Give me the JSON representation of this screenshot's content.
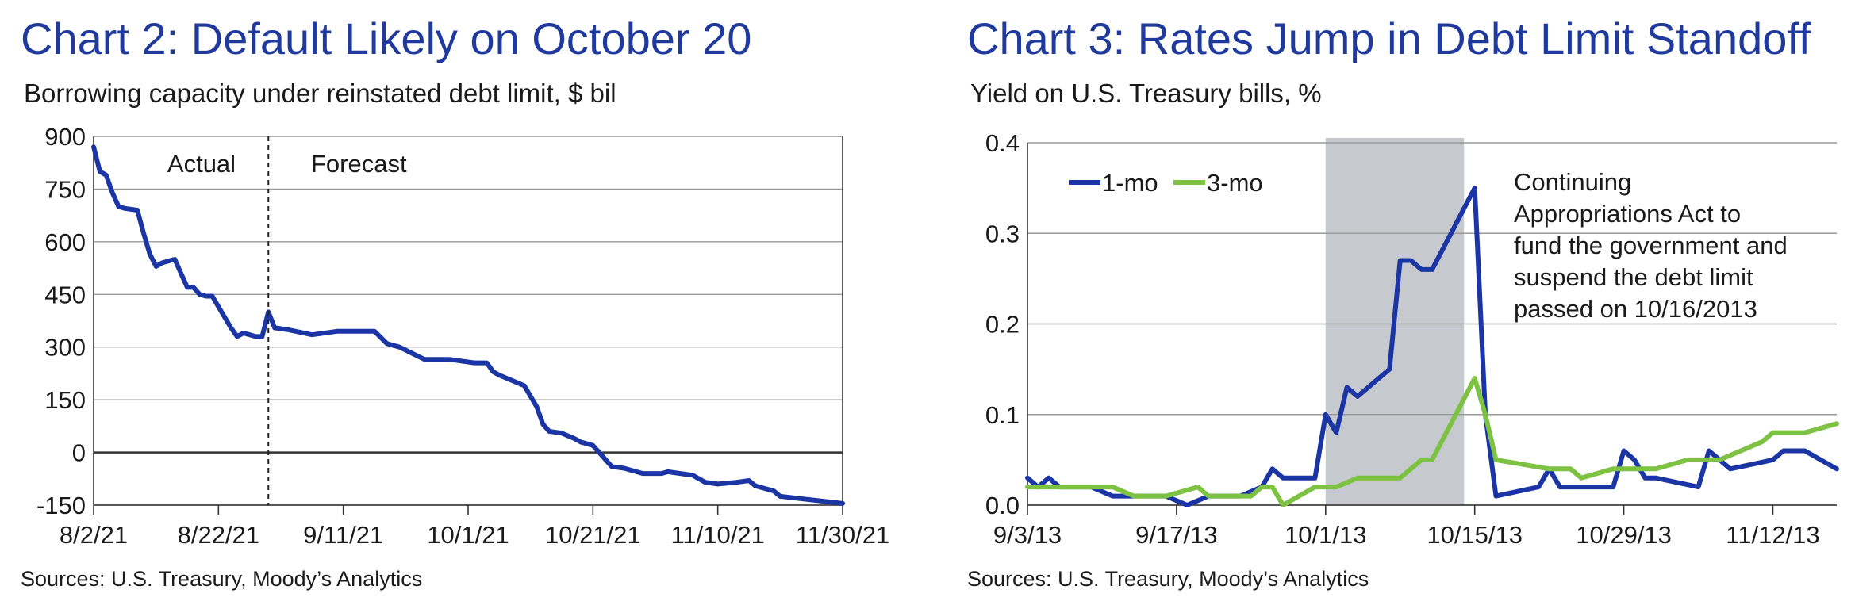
{
  "colors": {
    "title": "#1f3a9c",
    "series_1mo": "#1b35a5",
    "series_3mo": "#7dc242",
    "shade": "#c6cacf",
    "grid": "#9a9a9a"
  },
  "chart_data": [
    {
      "type": "line",
      "title": "Chart 2: Default Likely on October 20",
      "subtitle": "Borrowing capacity under reinstated debt limit, $ bil",
      "source": "Sources: U.S. Treasury, Moody’s Analytics",
      "ylim": [
        -150,
        900
      ],
      "yticks": [
        "900",
        "750",
        "600",
        "450",
        "300",
        "150",
        "0",
        "-150"
      ],
      "xticks": [
        "8/2/21",
        "8/22/21",
        "9/11/21",
        "10/1/21",
        "10/21/21",
        "11/10/21",
        "11/30/21"
      ],
      "x_range": [
        "8/2/21",
        "11/30/21"
      ],
      "forecast_start": "8/30/21",
      "annotations": {
        "actual": "Actual",
        "forecast": "Forecast"
      },
      "grid": true,
      "series": [
        {
          "x": [
            "8/2/21",
            "8/3/21",
            "8/4/21",
            "8/5/21",
            "8/6/21",
            "8/7/21",
            "8/9/21",
            "8/10/21",
            "8/11/21",
            "8/12/21",
            "8/13/21",
            "8/15/21",
            "8/16/21",
            "8/17/21",
            "8/18/21",
            "8/19/21",
            "8/20/21",
            "8/21/21",
            "8/23/21",
            "8/24/21",
            "8/25/21",
            "8/26/21",
            "8/27/21",
            "8/28/21",
            "8/29/21",
            "8/30/21",
            "8/31/21",
            "9/2/21",
            "9/6/21",
            "9/10/21",
            "9/12/21",
            "9/16/21",
            "9/18/21",
            "9/20/21",
            "9/24/21",
            "9/26/21",
            "9/28/21",
            "10/2/21",
            "10/4/21",
            "10/5/21",
            "10/6/21",
            "10/10/21",
            "10/12/21",
            "10/13/21",
            "10/14/21",
            "10/16/21",
            "10/18/21",
            "10/19/21",
            "10/21/21",
            "10/24/21",
            "10/26/21",
            "10/27/21",
            "10/29/21",
            "11/1/21",
            "11/2/21",
            "11/4/21",
            "11/6/21",
            "11/8/21",
            "11/10/21",
            "11/13/21",
            "11/15/21",
            "11/16/21",
            "11/19/21",
            "11/20/21",
            "11/25/21",
            "11/30/21"
          ],
          "values": [
            870,
            800,
            790,
            740,
            700,
            695,
            690,
            625,
            565,
            530,
            540,
            550,
            510,
            470,
            470,
            450,
            445,
            445,
            385,
            355,
            330,
            340,
            335,
            330,
            330,
            400,
            355,
            350,
            335,
            345,
            345,
            345,
            310,
            300,
            265,
            265,
            265,
            255,
            255,
            230,
            220,
            190,
            130,
            80,
            60,
            55,
            40,
            30,
            20,
            -40,
            -45,
            -50,
            -60,
            -60,
            -55,
            -60,
            -65,
            -85,
            -90,
            -85,
            -80,
            -95,
            -110,
            -125,
            -135,
            -145
          ]
        }
      ]
    },
    {
      "type": "line",
      "title": "Chart 3: Rates Jump in Debt Limit Standoff",
      "subtitle": "Yield on U.S. Treasury bills, %",
      "source": "Sources: U.S. Treasury, Moody’s Analytics",
      "ylim": [
        0.0,
        0.4
      ],
      "yticks": [
        "0.4",
        "0.3",
        "0.2",
        "0.1",
        "0.0"
      ],
      "xticks": [
        "9/3/13",
        "9/17/13",
        "10/1/13",
        "10/15/13",
        "10/29/13",
        "11/12/13"
      ],
      "x_range": [
        "9/3/13",
        "11/18/13"
      ],
      "shaded_range": [
        "10/1/13",
        "10/14/13"
      ],
      "legend": {
        "placement": "top-left"
      },
      "annotation": [
        "Continuing",
        "Appropriations Act to",
        "fund the government and",
        "suspend the debt limit",
        "passed on 10/16/2013"
      ],
      "grid": true,
      "series": [
        {
          "name": "1-mo",
          "x": [
            "9/3/13",
            "9/4/13",
            "9/5/13",
            "9/6/13",
            "9/9/13",
            "9/11/13",
            "9/13/13",
            "9/16/13",
            "9/18/13",
            "9/20/13",
            "9/23/13",
            "9/25/13",
            "9/26/13",
            "9/27/13",
            "9/30/13",
            "10/1/13",
            "10/2/13",
            "10/3/13",
            "10/4/13",
            "10/7/13",
            "10/8/13",
            "10/9/13",
            "10/10/13",
            "10/11/13",
            "10/15/13",
            "10/16/13",
            "10/17/13",
            "10/21/13",
            "10/22/13",
            "10/23/13",
            "10/25/13",
            "10/28/13",
            "10/29/13",
            "10/30/13",
            "10/31/13",
            "11/1/13",
            "11/5/13",
            "11/6/13",
            "11/7/13",
            "11/8/13",
            "11/12/13",
            "11/13/13",
            "11/15/13",
            "11/18/13"
          ],
          "values": [
            0.03,
            0.02,
            0.03,
            0.02,
            0.02,
            0.01,
            0.01,
            0.01,
            0.0,
            0.01,
            0.01,
            0.02,
            0.04,
            0.03,
            0.03,
            0.1,
            0.08,
            0.13,
            0.12,
            0.15,
            0.27,
            0.27,
            0.26,
            0.26,
            0.35,
            0.1,
            0.01,
            0.02,
            0.04,
            0.02,
            0.02,
            0.02,
            0.06,
            0.05,
            0.03,
            0.03,
            0.02,
            0.06,
            0.05,
            0.04,
            0.05,
            0.06,
            0.06,
            0.04
          ]
        },
        {
          "name": "3-mo",
          "x": [
            "9/3/13",
            "9/6/13",
            "9/11/13",
            "9/13/13",
            "9/16/13",
            "9/19/13",
            "9/20/13",
            "9/24/13",
            "9/25/13",
            "9/26/13",
            "9/27/13",
            "9/30/13",
            "10/1/13",
            "10/2/13",
            "10/4/13",
            "10/8/13",
            "10/10/13",
            "10/11/13",
            "10/15/13",
            "10/16/13",
            "10/17/13",
            "10/22/13",
            "10/23/13",
            "10/24/13",
            "10/25/13",
            "10/28/13",
            "10/29/13",
            "10/31/13",
            "11/1/13",
            "11/4/13",
            "11/6/13",
            "11/7/13",
            "11/11/13",
            "11/12/13",
            "11/15/13",
            "11/18/13"
          ],
          "values": [
            0.02,
            0.02,
            0.02,
            0.01,
            0.01,
            0.02,
            0.01,
            0.01,
            0.02,
            0.02,
            0.0,
            0.02,
            0.02,
            0.02,
            0.03,
            0.03,
            0.05,
            0.05,
            0.14,
            0.1,
            0.05,
            0.04,
            0.04,
            0.04,
            0.03,
            0.04,
            0.04,
            0.04,
            0.04,
            0.05,
            0.05,
            0.05,
            0.07,
            0.08,
            0.08,
            0.09
          ]
        }
      ]
    }
  ]
}
